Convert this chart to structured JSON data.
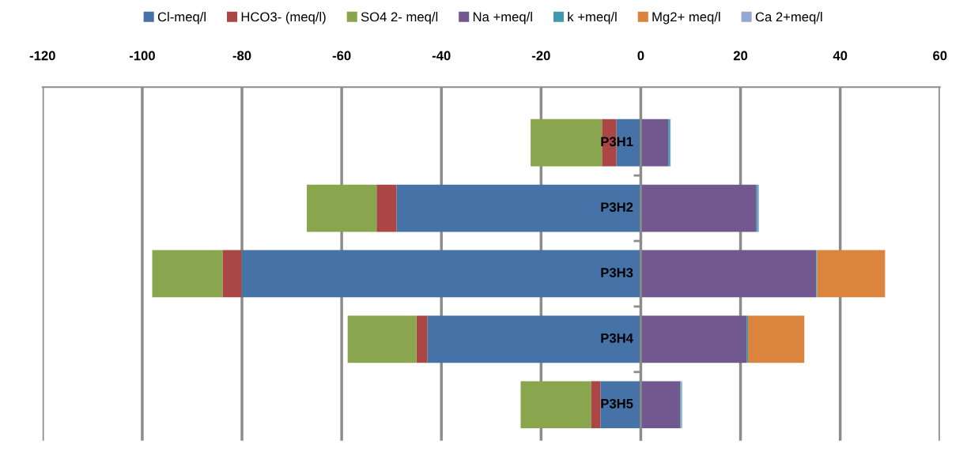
{
  "chart_data": {
    "type": "bar",
    "orientation": "horizontal",
    "stacked": true,
    "categories": [
      "P3H1",
      "P3H2",
      "P3H3",
      "P3H4",
      "P3H5"
    ],
    "series": [
      {
        "name": "Cl-meq/l",
        "color": "#4572a7",
        "values": [
          -4.9,
          -49,
          -80.1,
          -42.8,
          -8.1
        ]
      },
      {
        "name": "HCO3- (meq/l)",
        "color": "#aa4643",
        "values": [
          -2.9,
          -4,
          -3.8,
          -2.2,
          -1.9
        ]
      },
      {
        "name": "SO4 2- meq/l",
        "color": "#89a54e",
        "values": [
          -14.3,
          -14,
          -14.1,
          -13.8,
          -14.1
        ]
      },
      {
        "name": "Na +meq/l",
        "color": "#71588f",
        "values": [
          5.5,
          23.2,
          35.2,
          21.2,
          7.9
        ]
      },
      {
        "name": "k +meq/l",
        "color": "#4198af",
        "values": [
          0.3,
          0.3,
          0.2,
          0.3,
          0.2
        ]
      },
      {
        "name": "Mg2+ meq/l",
        "color": "#db843d",
        "values": [
          0,
          0,
          13.6,
          11.3,
          0
        ]
      },
      {
        "name": "Ca 2+meq/l",
        "color": "#93a9cf",
        "values": [
          0.2,
          0.2,
          0,
          0,
          0.2
        ]
      }
    ],
    "xlim": [
      -120,
      60
    ],
    "xticks": [
      -120,
      -100,
      -80,
      -60,
      -40,
      -20,
      0,
      20,
      40,
      60
    ],
    "grid": "x",
    "legend": "top"
  }
}
